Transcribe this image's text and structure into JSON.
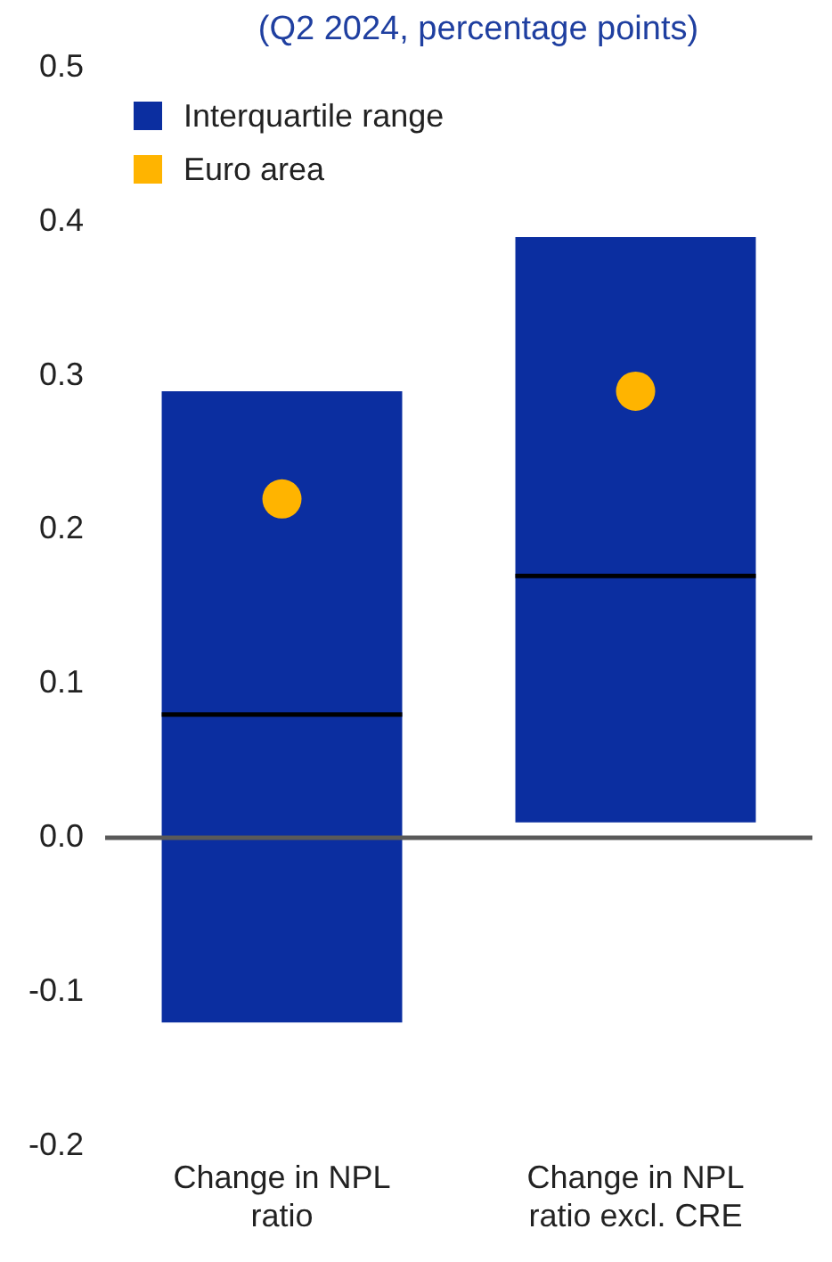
{
  "chart_data": {
    "type": "box",
    "title": "(Q2 2024, percentage points)",
    "categories": [
      "Change in NPL ratio",
      "Change in NPL ratio excl. CRE"
    ],
    "series": [
      {
        "name": "Interquartile range",
        "type": "box",
        "color": "#0b2ea0",
        "boxes": [
          {
            "low": -0.12,
            "q1": -0.12,
            "median": 0.08,
            "q3": 0.29,
            "high": 0.29
          },
          {
            "low": 0.01,
            "q1": 0.01,
            "median": 0.17,
            "q3": 0.39,
            "high": 0.39
          }
        ]
      },
      {
        "name": "Euro area",
        "type": "scatter",
        "color": "#ffb400",
        "x": [
          "Change in NPL ratio",
          "Change in NPL ratio excl. CRE"
        ],
        "values": [
          0.22,
          0.29
        ]
      }
    ],
    "ylim": [
      -0.2,
      0.5
    ],
    "yticks": [
      {
        "value": -0.2,
        "label": "-0.2"
      },
      {
        "value": -0.1,
        "label": "-0.1"
      },
      {
        "value": 0,
        "label": "0.0"
      },
      {
        "value": 0.1,
        "label": "0.1"
      },
      {
        "value": 0.2,
        "label": "0.2"
      },
      {
        "value": 0.3,
        "label": "0.3"
      },
      {
        "value": 0.4,
        "label": "0.4"
      },
      {
        "value": 0.5,
        "label": "0.5"
      }
    ],
    "ref_lines": [
      {
        "axis": "y",
        "value": 0,
        "color": "#595959"
      }
    ],
    "legend": "top left",
    "marker": "circle"
  }
}
